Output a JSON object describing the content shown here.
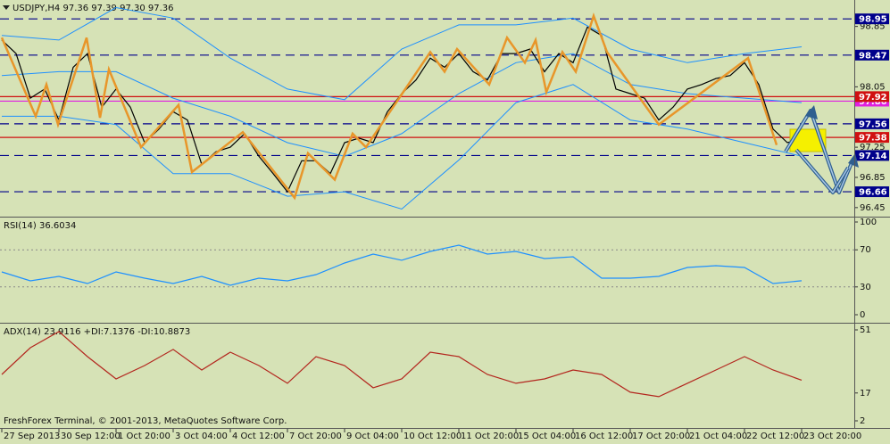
{
  "chart_data": [
    {
      "type": "line",
      "title": "USDJPY,H4  97.36 97.39 97.30 97.36",
      "xlim": [
        -0.25,
        119.375
      ],
      "ylim": [
        96.33,
        99.2
      ],
      "xticks": [
        {
          "value": 0,
          "label": "27 Sep 2013"
        },
        {
          "value": 8,
          "label": "30 Sep 12:00"
        },
        {
          "value": 16,
          "label": "1 Oct 20:00"
        },
        {
          "value": 24,
          "label": "3 Oct 04:00"
        },
        {
          "value": 32,
          "label": "4 Oct 12:00"
        },
        {
          "value": 40,
          "label": "7 Oct 20:00"
        },
        {
          "value": 48,
          "label": "9 Oct 04:00"
        },
        {
          "value": 56,
          "label": "10 Oct 12:00"
        },
        {
          "value": 64,
          "label": "11 Oct 20:00"
        },
        {
          "value": 72,
          "label": "15 Oct 04:00"
        },
        {
          "value": 80,
          "label": "16 Oct 12:00"
        },
        {
          "value": 88,
          "label": "17 Oct 20:00"
        },
        {
          "value": 96,
          "label": "21 Oct 04:00"
        },
        {
          "value": 104,
          "label": "22 Oct 12:00"
        },
        {
          "value": 112,
          "label": "23 Oct 20:00"
        }
      ],
      "yticks": [
        98.85,
        98.05,
        97.25,
        96.85,
        96.45
      ],
      "levels": [
        {
          "value": 98.95,
          "color": "#00008b",
          "style": "dashed"
        },
        {
          "value": 98.47,
          "color": "#00008b",
          "style": "dashed"
        },
        {
          "value": 97.86,
          "color": "#e020e0",
          "style": "solid"
        },
        {
          "value": 97.92,
          "color": "#d01010",
          "style": "solid"
        },
        {
          "value": 97.56,
          "color": "#00008b",
          "style": "dashed"
        },
        {
          "value": 97.38,
          "color": "#d01010",
          "style": "solid"
        },
        {
          "value": 97.14,
          "color": "#00008b",
          "style": "dashed"
        },
        {
          "value": 96.66,
          "color": "#00008b",
          "style": "dashed"
        }
      ],
      "x": [
        0,
        2,
        4,
        6,
        8,
        10,
        12,
        14,
        16,
        18,
        20,
        22,
        24,
        26,
        28,
        30,
        32,
        34,
        36,
        38,
        40,
        42,
        44,
        46,
        48,
        50,
        52,
        54,
        56,
        58,
        60,
        62,
        64,
        66,
        68,
        70,
        72,
        74,
        76,
        78,
        80,
        82,
        84,
        86,
        88,
        90,
        92,
        94,
        96,
        98,
        100,
        102,
        104,
        106,
        108,
        110,
        112
      ],
      "values": [
        98.67,
        98.49,
        97.9,
        98.02,
        97.61,
        98.31,
        98.49,
        97.78,
        98.02,
        97.78,
        97.31,
        97.49,
        97.72,
        97.61,
        97.02,
        97.19,
        97.25,
        97.43,
        97.13,
        96.9,
        96.66,
        97.07,
        97.07,
        96.9,
        97.31,
        97.37,
        97.31,
        97.72,
        97.96,
        98.14,
        98.43,
        98.31,
        98.49,
        98.25,
        98.14,
        98.49,
        98.49,
        98.55,
        98.25,
        98.49,
        98.37,
        98.84,
        98.73,
        98.02,
        97.96,
        97.9,
        97.61,
        97.78,
        98.02,
        98.08,
        98.16,
        98.2,
        98.37,
        98.08,
        97.49,
        97.31,
        97.36
      ],
      "color": "#000000",
      "bands": {
        "x": [
          0,
          8,
          16,
          24,
          32,
          40,
          48,
          56,
          64,
          72,
          80,
          88,
          96,
          104,
          112
        ],
        "upper": [
          98.73,
          98.67,
          99.1,
          98.96,
          98.43,
          98.02,
          97.88,
          98.55,
          98.87,
          98.87,
          98.96,
          98.55,
          98.37,
          98.49,
          98.58
        ],
        "middle": [
          98.2,
          98.25,
          98.25,
          97.9,
          97.66,
          97.31,
          97.13,
          97.43,
          97.96,
          98.37,
          98.49,
          98.08,
          97.96,
          97.9,
          97.84
        ],
        "lower": [
          97.66,
          97.66,
          97.55,
          96.9,
          96.9,
          96.6,
          96.66,
          96.43,
          97.08,
          97.84,
          98.08,
          97.61,
          97.49,
          97.31,
          97.13
        ],
        "color": "#1e90ff"
      },
      "zigzag": {
        "x": [
          0,
          4.75,
          6.25,
          7.875,
          11.875,
          13.75,
          15,
          19.5,
          24.75,
          26.625,
          33.75,
          41,
          42.875,
          46.625,
          49.125,
          51,
          60,
          62,
          63.75,
          68.25,
          70.75,
          73.25,
          74.75,
          76.25,
          78.5,
          80.375,
          82.875,
          84.75,
          92,
          104.5,
          108.5
        ],
        "values": [
          98.7,
          97.66,
          98.08,
          97.55,
          98.7,
          97.64,
          98.28,
          97.25,
          97.81,
          96.92,
          97.45,
          96.58,
          97.17,
          96.82,
          97.43,
          97.25,
          98.51,
          98.25,
          98.55,
          98.08,
          98.7,
          98.37,
          98.67,
          97.98,
          98.51,
          98.25,
          98.99,
          98.51,
          97.55,
          98.43,
          97.28
        ],
        "color": "#e8962a"
      }
    },
    {
      "type": "line",
      "title": "RSI(14) 36.6034",
      "xlim": [
        -0.25,
        119.375
      ],
      "ylim": [
        -8.65,
        104.8
      ],
      "yticks": [
        100,
        70,
        30,
        0
      ],
      "levels": [
        70,
        30
      ],
      "x": [
        0,
        4,
        8,
        12,
        16,
        20,
        24,
        28,
        32,
        36,
        40,
        44,
        48,
        52,
        56,
        60,
        64,
        68,
        72,
        76,
        80,
        84,
        88,
        92,
        96,
        100,
        104,
        108,
        112
      ],
      "values": [
        46.2,
        36.5,
        41.3,
        33.7,
        46.2,
        39.4,
        33.7,
        41.3,
        31.7,
        39.4,
        36.5,
        43.3,
        55.8,
        65.4,
        58.7,
        68.3,
        75.0,
        65.4,
        68.3,
        60.6,
        62.5,
        39.4,
        39.4,
        41.3,
        51.0,
        52.9,
        51.0,
        33.7,
        36.6
      ],
      "color": "#1e90ff"
    },
    {
      "type": "line",
      "title": "ADX(14) 23.9116 +DI:7.1376 -DI:10.8873",
      "annotation": "FreshForex Terminal, © 2001-2013, MetaQuotes Software Corp.",
      "xlim": [
        -0.25,
        119.375
      ],
      "ylim": [
        -1.85,
        54.37
      ],
      "yticks": [
        51,
        17,
        2
      ],
      "x": [
        0,
        4,
        8,
        12,
        16,
        20,
        24,
        28,
        32,
        36,
        40,
        44,
        48,
        52,
        56,
        60,
        64,
        68,
        72,
        76,
        80,
        84,
        88,
        92,
        96,
        100,
        104,
        108,
        112
      ],
      "values": [
        27.0,
        41.4,
        50.1,
        36.6,
        24.6,
        31.8,
        40.5,
        29.4,
        39.0,
        31.8,
        22.2,
        36.6,
        31.8,
        19.8,
        24.6,
        39.0,
        36.6,
        27.0,
        22.2,
        24.6,
        29.4,
        27.0,
        17.4,
        15.0,
        22.2,
        29.4,
        36.6,
        29.4,
        23.9
      ],
      "color": "#b3261e"
    }
  ]
}
